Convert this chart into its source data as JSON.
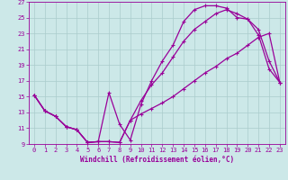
{
  "xlabel": "Windchill (Refroidissement éolien,°C)",
  "ylabel": "",
  "xlim": [
    -0.5,
    23.5
  ],
  "ylim": [
    9,
    27
  ],
  "xticks": [
    0,
    1,
    2,
    3,
    4,
    5,
    6,
    7,
    8,
    9,
    10,
    11,
    12,
    13,
    14,
    15,
    16,
    17,
    18,
    19,
    20,
    21,
    22,
    23
  ],
  "yticks": [
    9,
    11,
    13,
    15,
    17,
    19,
    21,
    23,
    25,
    27
  ],
  "bg_color": "#cce8e8",
  "line_color": "#990099",
  "grid_color": "#aacccc",
  "lines": [
    {
      "x": [
        0,
        1,
        2,
        3,
        4,
        5,
        6,
        7,
        8,
        9,
        10,
        11,
        12,
        13,
        14,
        15,
        16,
        17,
        18,
        19,
        20,
        21,
        22,
        23
      ],
      "y": [
        15.2,
        13.2,
        12.5,
        11.2,
        10.8,
        9.2,
        9.3,
        15.5,
        11.5,
        9.5,
        14.0,
        17.0,
        19.5,
        21.5,
        24.5,
        26.0,
        26.5,
        26.5,
        26.2,
        25.0,
        24.8,
        22.8,
        18.5,
        16.8
      ]
    },
    {
      "x": [
        0,
        1,
        2,
        3,
        4,
        5,
        6,
        7,
        8,
        9,
        10,
        11,
        12,
        13,
        14,
        15,
        16,
        17,
        18,
        19,
        20,
        21,
        22,
        23
      ],
      "y": [
        15.2,
        13.2,
        12.5,
        11.2,
        10.8,
        9.2,
        9.3,
        9.3,
        9.2,
        12.0,
        14.5,
        16.5,
        18.0,
        20.0,
        22.0,
        23.5,
        24.5,
        25.5,
        26.0,
        25.5,
        24.8,
        23.5,
        19.5,
        16.8
      ]
    },
    {
      "x": [
        0,
        1,
        2,
        3,
        4,
        5,
        6,
        7,
        8,
        9,
        10,
        11,
        12,
        13,
        14,
        15,
        16,
        17,
        18,
        19,
        20,
        21,
        22,
        23
      ],
      "y": [
        15.2,
        13.2,
        12.5,
        11.2,
        10.8,
        9.2,
        9.3,
        9.3,
        9.2,
        12.0,
        12.8,
        13.5,
        14.2,
        15.0,
        16.0,
        17.0,
        18.0,
        18.8,
        19.8,
        20.5,
        21.5,
        22.5,
        23.0,
        16.8
      ]
    }
  ],
  "marker": "+",
  "markersize": 3.5,
  "linewidth": 0.9,
  "axis_fontsize": 5.5,
  "tick_fontsize": 5.0
}
